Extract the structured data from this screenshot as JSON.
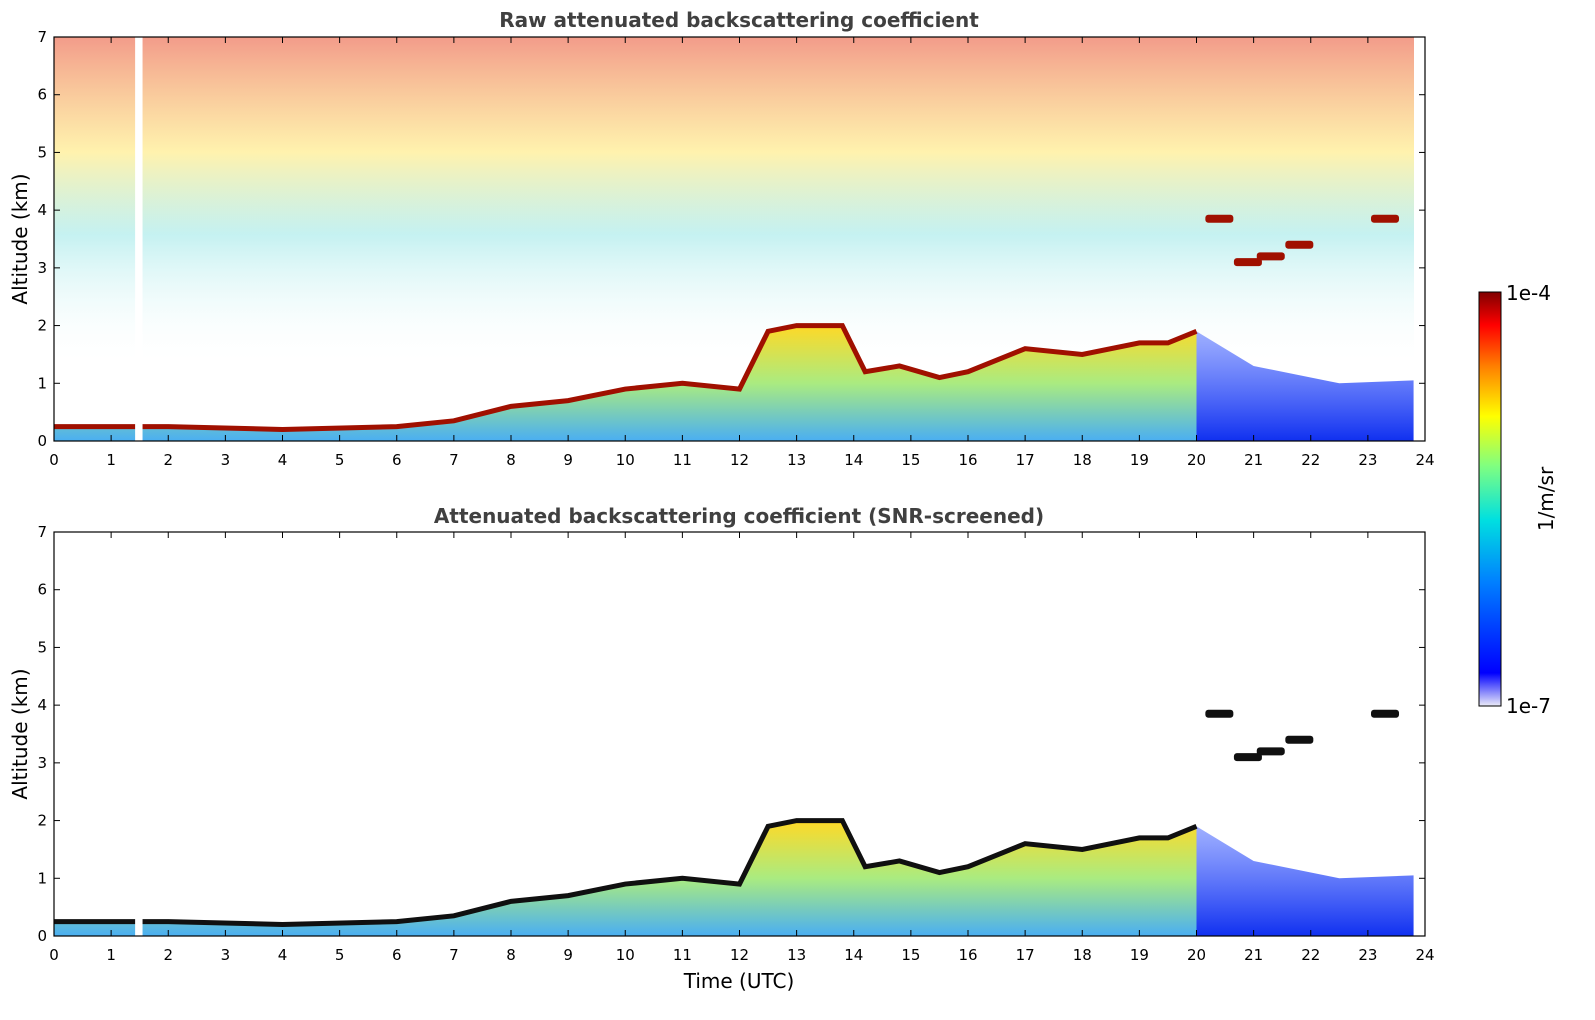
{
  "chart_data": [
    {
      "type": "heatmap",
      "title": "Raw attenuated backscattering coefficient",
      "xlabel": "",
      "ylabel": "Altitude (km)",
      "xlim": [
        0,
        24
      ],
      "ylim": [
        0,
        7
      ],
      "x_ticks": [
        "0",
        "1",
        "2",
        "3",
        "4",
        "5",
        "6",
        "7",
        "8",
        "9",
        "10",
        "11",
        "12",
        "13",
        "14",
        "15",
        "16",
        "17",
        "18",
        "19",
        "20",
        "21",
        "22",
        "23",
        "24"
      ],
      "y_ticks": [
        "0",
        "1",
        "2",
        "3",
        "4",
        "5",
        "6",
        "7"
      ],
      "grid": false,
      "data_gap": {
        "x_start": 1.42,
        "x_end": 1.55
      },
      "boundary_layer_top_km": [
        [
          0.0,
          0.25
        ],
        [
          2,
          0.25
        ],
        [
          4,
          0.2
        ],
        [
          6,
          0.25
        ],
        [
          7,
          0.35
        ],
        [
          8,
          0.6
        ],
        [
          9,
          0.7
        ],
        [
          10,
          0.9
        ],
        [
          11,
          1.0
        ],
        [
          12,
          0.9
        ],
        [
          12.5,
          1.9
        ],
        [
          13,
          2.0
        ],
        [
          13.8,
          2.0
        ],
        [
          14.2,
          1.2
        ],
        [
          14.8,
          1.3
        ],
        [
          15.5,
          1.1
        ],
        [
          16,
          1.2
        ],
        [
          17,
          1.6
        ],
        [
          18,
          1.5
        ],
        [
          19,
          1.7
        ],
        [
          19.5,
          1.7
        ],
        [
          20,
          1.9
        ]
      ],
      "elevated_layers_km": [
        {
          "x": 20.4,
          "y": 3.85
        },
        {
          "x": 20.9,
          "y": 3.1
        },
        {
          "x": 21.3,
          "y": 3.2
        },
        {
          "x": 21.8,
          "y": 3.4
        },
        {
          "x": 23.3,
          "y": 3.85
        }
      ]
    },
    {
      "type": "heatmap",
      "title": "Attenuated backscattering coefficient (SNR-screened)",
      "xlabel": "Time (UTC)",
      "ylabel": "Altitude (km)",
      "xlim": [
        0,
        24
      ],
      "ylim": [
        0,
        7
      ],
      "x_ticks": [
        "0",
        "1",
        "2",
        "3",
        "4",
        "5",
        "6",
        "7",
        "8",
        "9",
        "10",
        "11",
        "12",
        "13",
        "14",
        "15",
        "16",
        "17",
        "18",
        "19",
        "20",
        "21",
        "22",
        "23",
        "24"
      ],
      "y_ticks": [
        "0",
        "1",
        "2",
        "3",
        "4",
        "5",
        "6",
        "7"
      ],
      "grid": false
    }
  ],
  "colorbar": {
    "label": "1/m/sr",
    "min_label": "1e-7",
    "max_label": "1e-4",
    "scale": "log",
    "min": 1e-07,
    "max": 0.0001,
    "colors": [
      "#ececf8",
      "#0000ff",
      "#0080ff",
      "#00e0e0",
      "#80ff80",
      "#ffff00",
      "#ff8000",
      "#ff0000",
      "#800000"
    ]
  }
}
